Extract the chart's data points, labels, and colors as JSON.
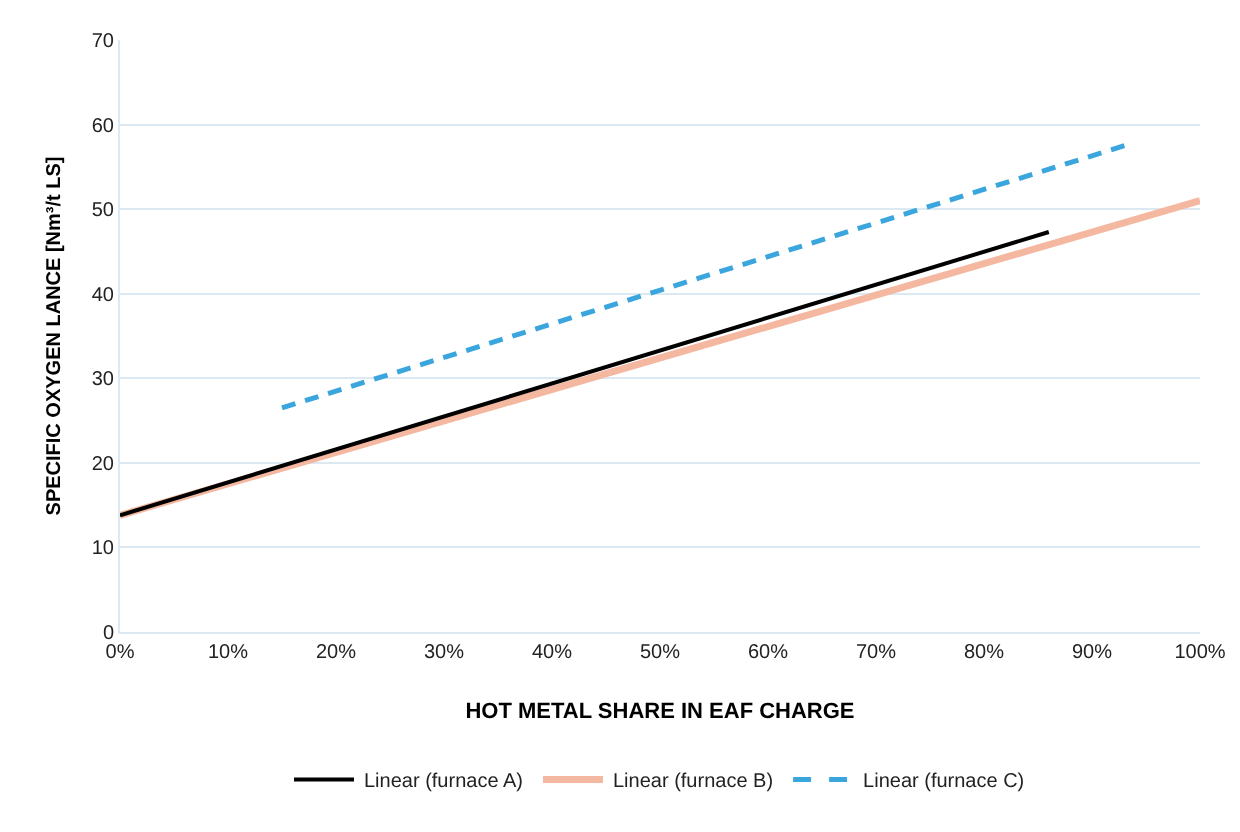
{
  "chart_data": {
    "type": "line",
    "xlabel": "HOT METAL SHARE IN EAF CHARGE",
    "ylabel": "SPECIFIC OXYGEN LANCE [Nm³/t LS]",
    "xlim": [
      0,
      100
    ],
    "xticks": [
      {
        "value": 0,
        "label": "0%"
      },
      {
        "value": 10,
        "label": "10%"
      },
      {
        "value": 20,
        "label": "20%"
      },
      {
        "value": 30,
        "label": "30%"
      },
      {
        "value": 40,
        "label": "40%"
      },
      {
        "value": 50,
        "label": "50%"
      },
      {
        "value": 60,
        "label": "60%"
      },
      {
        "value": 70,
        "label": "70%"
      },
      {
        "value": 80,
        "label": "80%"
      },
      {
        "value": 90,
        "label": "90%"
      },
      {
        "value": 100,
        "label": "100%"
      }
    ],
    "ylim": [
      0,
      70
    ],
    "yticks": [
      0,
      10,
      20,
      30,
      40,
      50,
      60,
      70
    ],
    "grid": "y",
    "legend": "bottom",
    "marker": "none",
    "series": [
      {
        "name": "Linear (furnace A)",
        "color": "#000000",
        "line_style": "solid",
        "x": [
          0,
          86
        ],
        "values": [
          13.8,
          47.3
        ]
      },
      {
        "name": "Linear (furnace B)",
        "color": "#f4b7a0",
        "line_style": "solid",
        "x": [
          0,
          100
        ],
        "values": [
          13.8,
          51
        ]
      },
      {
        "name": "Linear (furnace C)",
        "color": "#3aa6dd",
        "line_style": "dashed",
        "x": [
          15,
          93
        ],
        "values": [
          26.5,
          57.5
        ]
      }
    ]
  }
}
